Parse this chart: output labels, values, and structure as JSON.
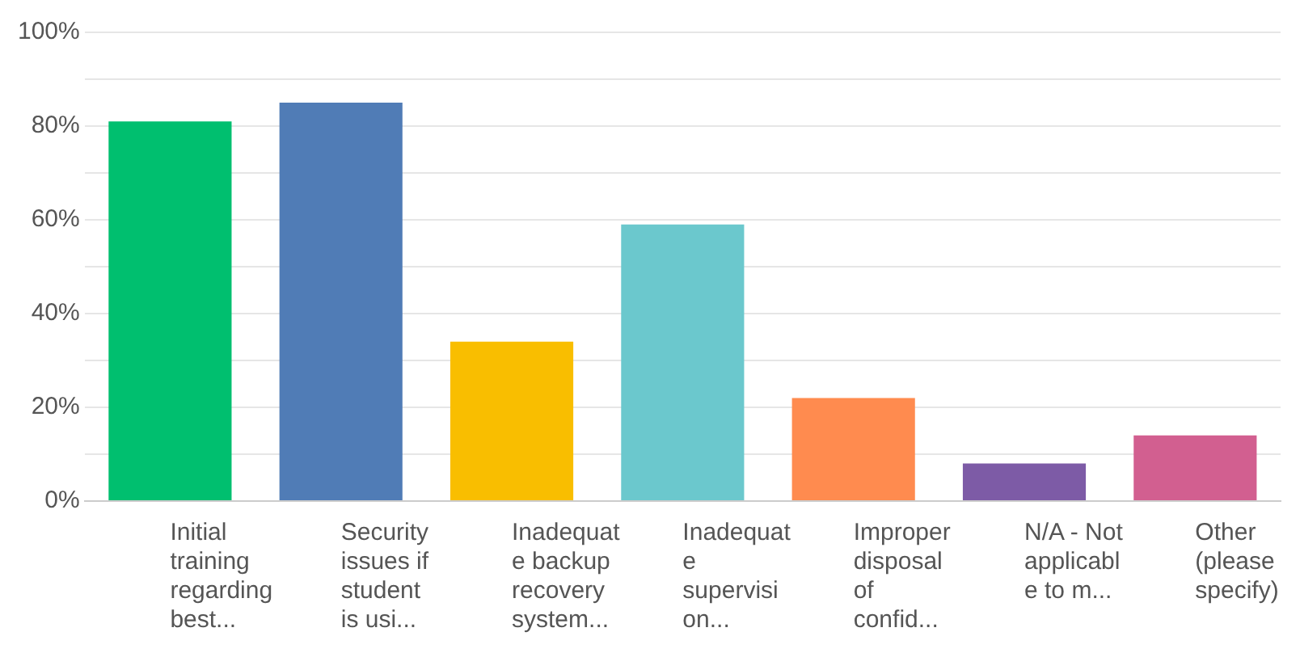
{
  "chart_data": {
    "type": "bar",
    "categories": [
      "Initial training regarding best...",
      "Security issues if student is usi...",
      "Inadequate backup recovery system...",
      "Inadequate supervision...",
      "Improper disposal of confid...",
      "N/A - Not applicable to m...",
      "Other (please specify)"
    ],
    "values": [
      81,
      85,
      34,
      59,
      22,
      8,
      14
    ],
    "colors": [
      "#00bf6f",
      "#507cb6",
      "#f9be00",
      "#6bc8cd",
      "#ff8b4f",
      "#7d5ba6",
      "#d25f90"
    ],
    "ylim": [
      0,
      100
    ],
    "yticks": [
      {
        "value": 0,
        "label": "0%"
      },
      {
        "value": 10,
        "label": null
      },
      {
        "value": 20,
        "label": "20%"
      },
      {
        "value": 30,
        "label": null
      },
      {
        "value": 40,
        "label": "40%"
      },
      {
        "value": 50,
        "label": null
      },
      {
        "value": 60,
        "label": "60%"
      },
      {
        "value": 70,
        "label": null
      },
      {
        "value": 80,
        "label": "80%"
      },
      {
        "value": 90,
        "label": null
      },
      {
        "value": 100,
        "label": "100%"
      }
    ],
    "grid": true
  }
}
